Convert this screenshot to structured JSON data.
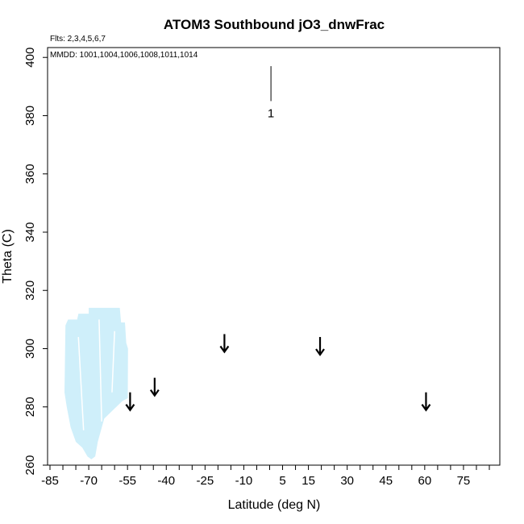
{
  "chart_data": {
    "type": "scatter",
    "title": "ATOM3 Southbound jO3_dnwFrac",
    "annotations": {
      "flights": "Flts: 2,3,4,5,6,7",
      "dates": "MMDD: 1001,1004,1006,1008,1011,1014"
    },
    "xlabel": "Latitude (deg N)",
    "ylabel": "Theta (C)",
    "xlim": [
      -85,
      85
    ],
    "ylim": [
      260,
      402
    ],
    "xticks": [
      -85,
      -70,
      -55,
      -40,
      -25,
      -10,
      5,
      15,
      30,
      45,
      60,
      75
    ],
    "xtick_labels": [
      "-85",
      "-70",
      "-55",
      "-40",
      "-25",
      "-10",
      "5",
      "15",
      "30",
      "45",
      "60",
      "75"
    ],
    "yticks": [
      260,
      280,
      300,
      320,
      340,
      360,
      380,
      400
    ],
    "ytick_labels": [
      "260",
      "280",
      "300",
      "320",
      "340",
      "360",
      "380",
      "400"
    ],
    "grid": false,
    "data_region_color": "#cfeffa",
    "data_region": [
      [
        -79.4,
        285
      ],
      [
        -79.0,
        308
      ],
      [
        -78.0,
        310
      ],
      [
        -74.5,
        310
      ],
      [
        -74.0,
        312
      ],
      [
        -70.0,
        312
      ],
      [
        -70.0,
        314
      ],
      [
        -58.0,
        314
      ],
      [
        -57.5,
        309
      ],
      [
        -56.0,
        309
      ],
      [
        -55.5,
        302
      ],
      [
        -54.8,
        300
      ],
      [
        -54.9,
        283
      ],
      [
        -57.0,
        282
      ],
      [
        -64.0,
        276
      ],
      [
        -66.5,
        268
      ],
      [
        -67.5,
        263
      ],
      [
        -69.0,
        262
      ],
      [
        -70.5,
        263
      ],
      [
        -72.5,
        266
      ],
      [
        -75.0,
        268
      ],
      [
        -77.0,
        273
      ],
      [
        -78.5,
        280
      ]
    ],
    "arrows": [
      {
        "lat": -54.0,
        "theta_top": 285
      },
      {
        "lat": -44.5,
        "theta_top": 290
      },
      {
        "lat": -17.5,
        "theta_top": 305
      },
      {
        "lat": 19.5,
        "theta_top": 304
      },
      {
        "lat": 60.5,
        "theta_top": 285
      }
    ],
    "markers": [
      {
        "label": "1",
        "lat": 0.5,
        "theta_top": 397,
        "theta_bottom": 385
      }
    ]
  }
}
